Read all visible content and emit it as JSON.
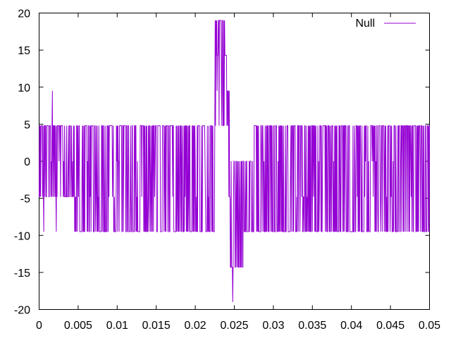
{
  "chart_data": {
    "type": "line",
    "title": "",
    "xlabel": "",
    "ylabel": "",
    "xlim": [
      0,
      0.05
    ],
    "ylim": [
      -20,
      20
    ],
    "xticks": [
      0,
      0.005,
      0.01,
      0.015,
      0.02,
      0.025,
      0.03,
      0.035,
      0.04,
      0.045,
      0.05
    ],
    "xtick_labels": [
      "0",
      "0.005",
      "0.01",
      "0.015",
      "0.02",
      "0.025",
      "0.03",
      "0.035",
      "0.04",
      "0.045",
      "0.05"
    ],
    "yticks": [
      -20,
      -15,
      -10,
      -5,
      0,
      5,
      10,
      15,
      20
    ],
    "ytick_labels": [
      "-20",
      "-15",
      "-10",
      "-5",
      "0",
      "5",
      "10",
      "15",
      "20"
    ],
    "grid": false,
    "legend": {
      "placement": "top-right"
    },
    "series": [
      {
        "name": "Null",
        "color": "#9400d3",
        "sample_interval": 5e-05,
        "levels": [
          -19,
          -14.3,
          -9.5,
          -4.8,
          0,
          4.8,
          9.5,
          14.3,
          19
        ],
        "regime_segments": [
          {
            "x_start": 0.0,
            "x_end": 0.0045,
            "levels": [
              -4.8,
              0,
              4.8
            ]
          },
          {
            "x_start": 0.0045,
            "x_end": 0.0225,
            "levels": [
              -9.5,
              -4.8,
              0,
              4.8
            ]
          },
          {
            "x_start": 0.0225,
            "x_end": 0.0238,
            "levels": [
              4.8,
              9.5,
              14.3,
              19
            ]
          },
          {
            "x_start": 0.0238,
            "x_end": 0.0242,
            "levels": [
              4.8,
              9.5,
              14.3
            ]
          },
          {
            "x_start": 0.0242,
            "x_end": 0.0245,
            "levels": [
              -4.8,
              0,
              4.8,
              9.5
            ]
          },
          {
            "x_start": 0.0245,
            "x_end": 0.0262,
            "levels": [
              -14.3,
              -9.5,
              -4.8,
              0
            ]
          },
          {
            "x_start": 0.0262,
            "x_end": 0.0275,
            "levels": [
              -9.5,
              -4.8,
              0
            ]
          },
          {
            "x_start": 0.0275,
            "x_end": 0.05,
            "levels": [
              -9.5,
              -4.8,
              0,
              4.8
            ]
          }
        ],
        "spikes": [
          {
            "x": 0.0006,
            "y": -9.5
          },
          {
            "x": 0.0017,
            "y": 9.5
          },
          {
            "x": 0.0022,
            "y": -9.5
          },
          {
            "x": 0.0248,
            "y": -19
          }
        ]
      }
    ]
  }
}
